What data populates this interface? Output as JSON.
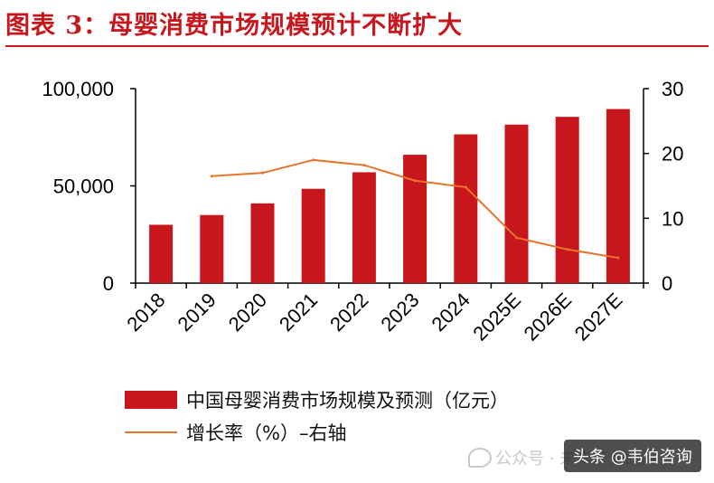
{
  "header": {
    "title": "图表 3：母婴消费市场规模预计不断扩大"
  },
  "chart_data": {
    "type": "bar",
    "title": "图表 3：母婴消费市场规模预计不断扩大",
    "categories": [
      "2018",
      "2019",
      "2020",
      "2021",
      "2022",
      "2023",
      "2024",
      "2025E",
      "2026E",
      "2027E"
    ],
    "series": [
      {
        "name": "中国母婴消费市场规模及预测（亿元）",
        "type": "bar",
        "axis": "left",
        "values": [
          30000,
          35000,
          41000,
          48500,
          57000,
          66000,
          76500,
          81500,
          85500,
          89500
        ]
      },
      {
        "name": "增长率（%）–右轴",
        "type": "line",
        "axis": "right",
        "values": [
          null,
          16.5,
          17.0,
          19.0,
          18.2,
          15.8,
          14.8,
          7.0,
          5.2,
          3.9
        ]
      }
    ],
    "y_left": {
      "ylim": [
        0,
        100000
      ],
      "ticks": [
        0,
        50000,
        100000
      ],
      "tick_labels": [
        "0",
        "50,000",
        "100,000"
      ]
    },
    "y_right": {
      "ylim": [
        0,
        30
      ],
      "ticks": [
        0,
        10,
        20,
        30
      ],
      "tick_labels": [
        "0",
        "10",
        "20",
        "30"
      ]
    },
    "grid": false,
    "legend_position": "bottom",
    "colors": {
      "bar": "#c8161d",
      "line": "#e8732a"
    }
  },
  "legend": {
    "bar_label": "中国母婴消费市场规模及预测（亿元）",
    "line_label": "增长率（%）–右轴"
  },
  "overlay": {
    "watermark": "公众号 · 未华产业研库",
    "badge": "头条 @韦伯咨询"
  }
}
